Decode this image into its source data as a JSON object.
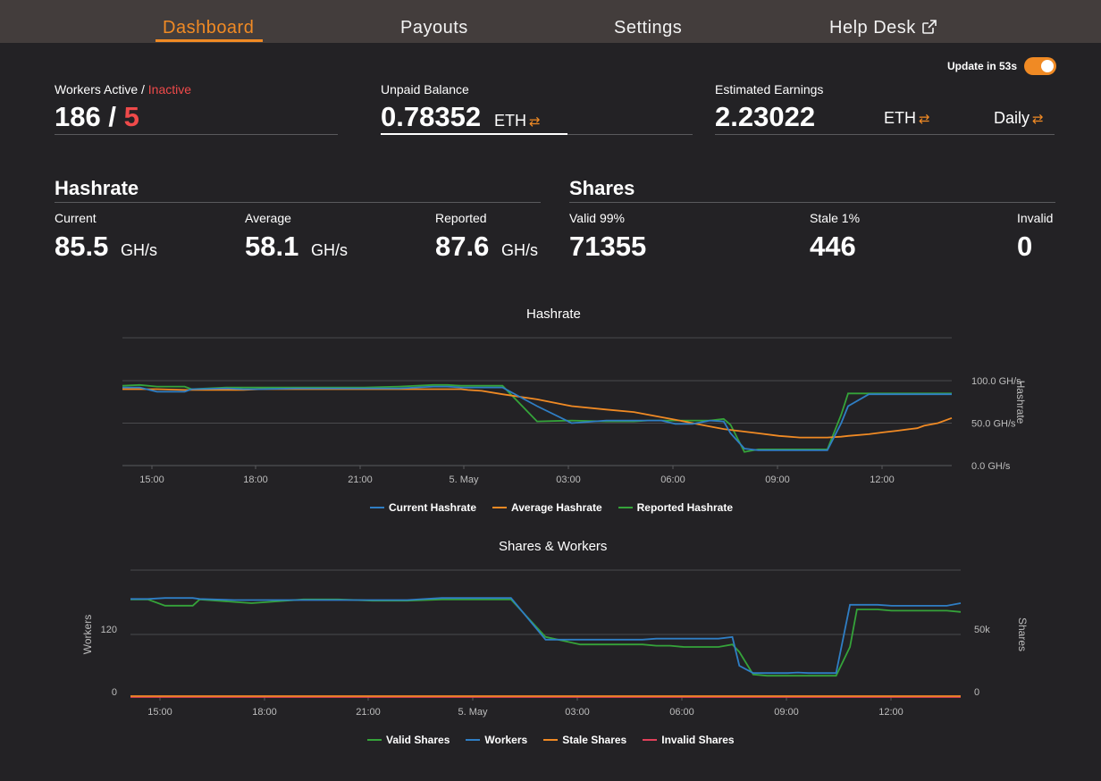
{
  "nav": {
    "items": [
      {
        "label": "Dashboard",
        "active": true
      },
      {
        "label": "Payouts",
        "active": false
      },
      {
        "label": "Settings",
        "active": false
      },
      {
        "label": "Help Desk",
        "active": false,
        "icon": "external-link-icon"
      }
    ]
  },
  "update": {
    "label": "Update in 53s",
    "enabled": true
  },
  "workers": {
    "label_active": "Workers Active",
    "label_sep": " / ",
    "label_inactive": "Inactive",
    "active": "186",
    "sep": " / ",
    "inactive": "5"
  },
  "balance": {
    "label": "Unpaid Balance",
    "value": "0.78352",
    "unit": "ETH",
    "progress": 0.6
  },
  "earnings": {
    "label": "Estimated Earnings",
    "value": "2.23022",
    "unit": "ETH",
    "period": "Daily"
  },
  "hashrate": {
    "title": "Hashrate",
    "current": {
      "label": "Current",
      "value": "85.5",
      "unit": "GH/s"
    },
    "average": {
      "label": "Average",
      "value": "58.1",
      "unit": "GH/s"
    },
    "reported": {
      "label": "Reported",
      "value": "87.6",
      "unit": "GH/s"
    }
  },
  "shares": {
    "title": "Shares",
    "valid": {
      "label": "Valid 99%",
      "value": "71355"
    },
    "stale": {
      "label": "Stale 1%",
      "value": "446"
    },
    "invalid": {
      "label": "Invalid",
      "value": "0"
    }
  },
  "colors": {
    "accent": "#f08a24",
    "current": "#2f7ec4",
    "average": "#f08a24",
    "reported": "#35a33a",
    "invalid": "#e0405a",
    "inactive": "#ef4a4a"
  },
  "chart_data": [
    {
      "type": "line",
      "title": "Hashrate",
      "ylabel": "Hashrate",
      "x_ticks": [
        "15:00",
        "18:00",
        "21:00",
        "5. May",
        "03:00",
        "06:00",
        "09:00",
        "12:00"
      ],
      "y_ticks": [
        "0.0 GH/s",
        "50.0 GH/s",
        "100.0 GH/s"
      ],
      "ylim": [
        0,
        150
      ],
      "x": [
        0,
        0.5,
        1,
        1.8,
        2,
        3,
        3.5,
        4,
        5,
        6,
        7,
        8,
        9,
        9.4,
        9.8,
        10,
        10.4,
        11,
        12,
        13,
        14,
        14.8,
        15.2,
        15.6,
        16,
        16.5,
        17,
        17.4,
        17.6,
        18,
        18.4,
        18.8,
        19,
        19.3,
        19.6,
        20,
        20.4,
        20.8,
        21,
        21.6,
        22,
        22.4,
        22.8,
        23,
        23.2,
        23.6,
        24
      ],
      "series": [
        {
          "name": "Current Hashrate",
          "values": [
            92,
            92,
            87,
            87,
            90,
            91,
            90,
            90,
            91,
            91,
            91,
            91,
            93,
            93,
            92,
            92,
            92,
            92,
            70,
            50,
            53,
            53,
            53,
            53,
            49,
            49,
            53,
            52,
            38,
            20,
            18,
            18,
            18,
            18,
            18,
            18,
            18,
            50,
            70,
            84,
            84,
            84,
            84,
            84,
            84,
            84,
            84
          ]
        },
        {
          "name": "Average Hashrate",
          "values": [
            90,
            90,
            90,
            89,
            89,
            89,
            89,
            90,
            90,
            90,
            90,
            90,
            90,
            90,
            90,
            89,
            88,
            84,
            78,
            70,
            66,
            63,
            60,
            57,
            54,
            50,
            46,
            43,
            42,
            40,
            38,
            36,
            35,
            34,
            33,
            33,
            33,
            34,
            35,
            37,
            39,
            41,
            43,
            44,
            47,
            50,
            56
          ]
        },
        {
          "name": "Reported Hashrate",
          "values": [
            94,
            95,
            93,
            93,
            90,
            92,
            92,
            92,
            92,
            92,
            92,
            93,
            95,
            95,
            94,
            94,
            94,
            94,
            52,
            53,
            52,
            52,
            53,
            53,
            53,
            53,
            53,
            55,
            48,
            16,
            19,
            19,
            19,
            19,
            19,
            19,
            19,
            60,
            85,
            85,
            85,
            85,
            85,
            85,
            85,
            85,
            85
          ]
        }
      ],
      "legend": "bottom"
    },
    {
      "type": "line",
      "title": "Shares & Workers",
      "y_left_label": "Workers",
      "y_right_label": "Shares",
      "x_ticks": [
        "15:00",
        "18:00",
        "21:00",
        "5. May",
        "03:00",
        "06:00",
        "09:00",
        "12:00"
      ],
      "y_left_ticks": [
        "0",
        "120"
      ],
      "y_right_ticks": [
        "0",
        "50k"
      ],
      "x": [
        0,
        0.5,
        1,
        1.8,
        2,
        3,
        3.5,
        4,
        5,
        6,
        7,
        8,
        9,
        9.4,
        9.8,
        10,
        10.4,
        11,
        12,
        13,
        14,
        14.8,
        15.2,
        15.6,
        16,
        16.5,
        17,
        17.4,
        17.6,
        18,
        18.4,
        18.8,
        19,
        19.3,
        19.6,
        20,
        20.4,
        20.8,
        21,
        21.6,
        22,
        22.4,
        22.8,
        23,
        23.2,
        23.6,
        24
      ],
      "series": [
        {
          "name": "Valid Shares",
          "values": [
            78,
            78,
            73,
            73,
            78,
            76,
            75,
            76,
            78,
            78,
            77,
            77,
            78,
            78,
            78,
            78,
            78,
            78,
            48,
            42,
            42,
            42,
            41,
            41,
            40,
            40,
            40,
            42,
            36,
            18,
            17,
            17,
            17,
            17,
            17,
            17,
            17,
            40,
            70,
            70,
            69,
            69,
            69,
            69,
            69,
            69,
            68
          ]
        },
        {
          "name": "Workers",
          "values": [
            188,
            188,
            190,
            190,
            188,
            186,
            186,
            186,
            186,
            186,
            186,
            186,
            190,
            190,
            190,
            190,
            190,
            190,
            110,
            110,
            110,
            110,
            112,
            112,
            112,
            112,
            112,
            115,
            60,
            46,
            46,
            46,
            46,
            47,
            46,
            46,
            46,
            177,
            177,
            177,
            175,
            175,
            175,
            175,
            175,
            175,
            180
          ]
        },
        {
          "name": "Stale Shares",
          "values": [
            1,
            1,
            1,
            1,
            1,
            1,
            1,
            1,
            1,
            1,
            1,
            1,
            1,
            1,
            1,
            1,
            1,
            1,
            1,
            1,
            1,
            1,
            1,
            1,
            1,
            1,
            1,
            1,
            1,
            1,
            1,
            1,
            1,
            1,
            1,
            1,
            1,
            1,
            1,
            1,
            1,
            1,
            1,
            1,
            1,
            1,
            1
          ]
        },
        {
          "name": "Invalid Shares",
          "values": [
            0,
            0,
            0,
            0,
            0,
            0,
            0,
            0,
            0,
            0,
            0,
            0,
            0,
            0,
            0,
            0,
            0,
            0,
            0,
            0,
            0,
            0,
            0,
            0,
            0,
            0,
            0,
            0,
            0,
            0,
            0,
            0,
            0,
            0,
            0,
            0,
            0,
            0,
            0,
            0,
            0,
            0,
            0,
            0,
            0,
            0,
            0
          ]
        }
      ],
      "legend": "bottom"
    }
  ]
}
